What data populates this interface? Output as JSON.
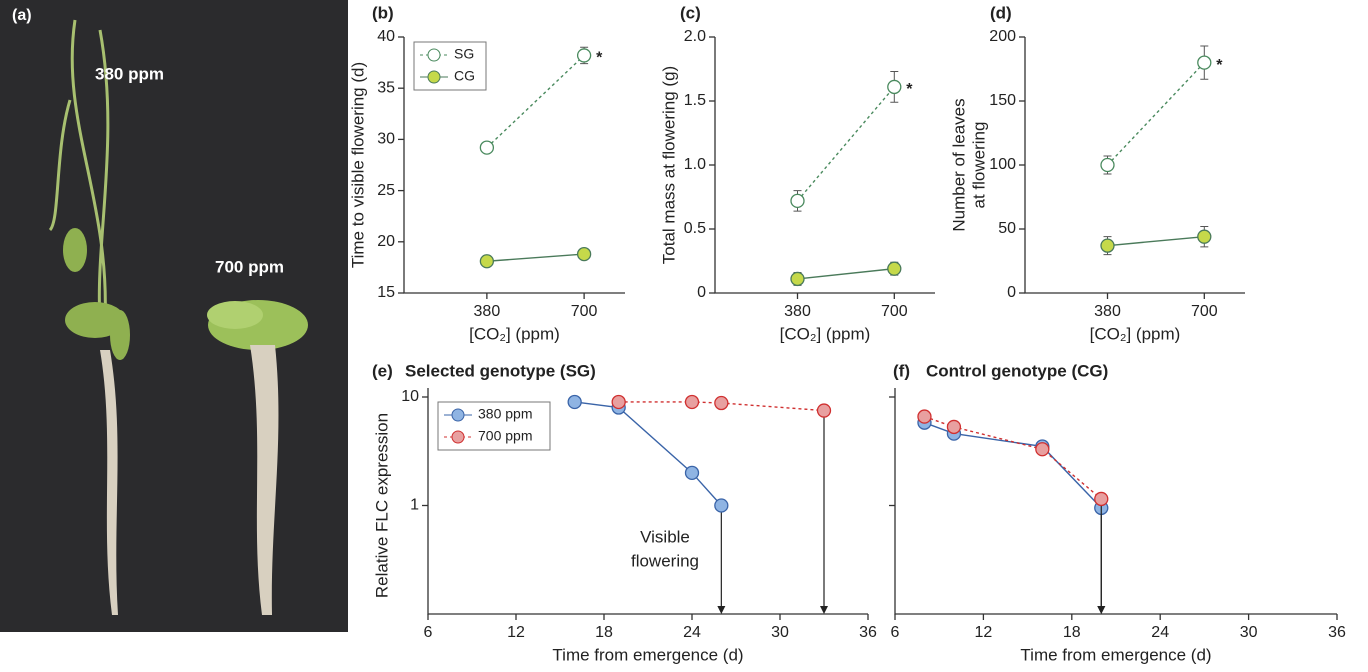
{
  "photo": {
    "label": "(a)",
    "annotations": [
      "380 ppm",
      "700 ppm"
    ]
  },
  "chart_data": [
    {
      "type": "line",
      "panel": "(b)",
      "ylabel": "Time to visible flowering (d)",
      "xlabel": "[CO₂] (ppm)",
      "categories": [
        "380",
        "700"
      ],
      "ylim": [
        15,
        40
      ],
      "yticks": [
        15,
        20,
        25,
        30,
        35,
        40
      ],
      "legend": "upper left",
      "annotation": "*",
      "series": [
        {
          "name": "SG",
          "color": "#4a8a5e",
          "fill": "#ffffff",
          "dash": true,
          "values": [
            29.2,
            38.2
          ],
          "errors": [
            0.3,
            0.8
          ]
        },
        {
          "name": "CG",
          "color": "#4a7a5a",
          "fill": "#c5d94a",
          "dash": false,
          "values": [
            18.1,
            18.8
          ],
          "errors": [
            0.3,
            0.4
          ]
        }
      ]
    },
    {
      "type": "line",
      "panel": "(c)",
      "ylabel": "Total mass at flowering (g)",
      "xlabel": "[CO₂] (ppm)",
      "categories": [
        "380",
        "700"
      ],
      "ylim": [
        0,
        2
      ],
      "yticks": [
        0,
        0.5,
        {
          "value": 1,
          "label": "1.0"
        },
        1.5,
        {
          "value": 2,
          "label": "2.0"
        }
      ],
      "annotation": "*",
      "series": [
        {
          "color": "#4a8a5e",
          "fill": "#ffffff",
          "dash": true,
          "values": [
            0.72,
            1.61
          ],
          "errors": [
            0.08,
            0.12
          ]
        },
        {
          "color": "#4a7a5a",
          "fill": "#c5d94a",
          "dash": false,
          "values": [
            0.11,
            0.19
          ],
          "errors": [
            0.05,
            0.05
          ]
        }
      ]
    },
    {
      "type": "line",
      "panel": "(d)",
      "ylabel": [
        "Number of leaves",
        "at flowering"
      ],
      "xlabel": "[CO₂] (ppm)",
      "categories": [
        "380",
        "700"
      ],
      "ylim": [
        0,
        200
      ],
      "yticks": [
        0,
        50,
        100,
        150,
        200
      ],
      "annotation": "*",
      "series": [
        {
          "color": "#4a8a5e",
          "fill": "#ffffff",
          "dash": true,
          "values": [
            100,
            180
          ],
          "errors": [
            7,
            13
          ]
        },
        {
          "color": "#4a7a5a",
          "fill": "#c5d94a",
          "dash": false,
          "values": [
            37,
            44
          ],
          "errors": [
            7,
            8
          ]
        }
      ]
    },
    {
      "type": "line",
      "panel": "(e)",
      "title": "Selected genotype (SG)",
      "ylabel": "Relative FLC expression",
      "xlabel": "Time from emergence (d)",
      "xlim": [
        6,
        36
      ],
      "xticks": [
        6,
        12,
        18,
        24,
        30,
        36
      ],
      "ylim": [
        0.1,
        10
      ],
      "yticks": [
        1,
        10
      ],
      "log_y": true,
      "legend": "upper left",
      "arrows": true,
      "annotation": [
        "Visible",
        "flowering"
      ],
      "series": [
        {
          "name": "380 ppm",
          "color": "#3a64a8",
          "fill": "#8fb4e3",
          "dash": false,
          "x": [
            16,
            19,
            24,
            26
          ],
          "values": [
            9,
            8,
            2,
            1
          ]
        },
        {
          "name": "700 ppm",
          "color": "#d03030",
          "fill": "#e8a0a0",
          "dash": true,
          "x": [
            19,
            24,
            26,
            33
          ],
          "values": [
            9,
            9,
            8.8,
            7.5
          ]
        }
      ]
    },
    {
      "type": "line",
      "panel": "(f)",
      "title": "Control genotype (CG)",
      "xlabel": "Time from emergence (d)",
      "xlim": [
        6,
        36
      ],
      "xticks": [
        6,
        12,
        18,
        24,
        30,
        36
      ],
      "ylim": [
        0.1,
        10
      ],
      "yticks": [
        1,
        10
      ],
      "log_y": true,
      "hide_ytick_labels": true,
      "arrows": true,
      "series": [
        {
          "color": "#3a64a8",
          "fill": "#8fb4e3",
          "dash": false,
          "x": [
            8,
            10,
            16,
            20
          ],
          "values": [
            5.8,
            4.6,
            3.5,
            0.95
          ]
        },
        {
          "color": "#d03030",
          "fill": "#e8a0a0",
          "dash": true,
          "x": [
            8,
            10,
            16,
            20
          ],
          "values": [
            6.6,
            5.3,
            3.3,
            1.15
          ]
        }
      ]
    }
  ]
}
